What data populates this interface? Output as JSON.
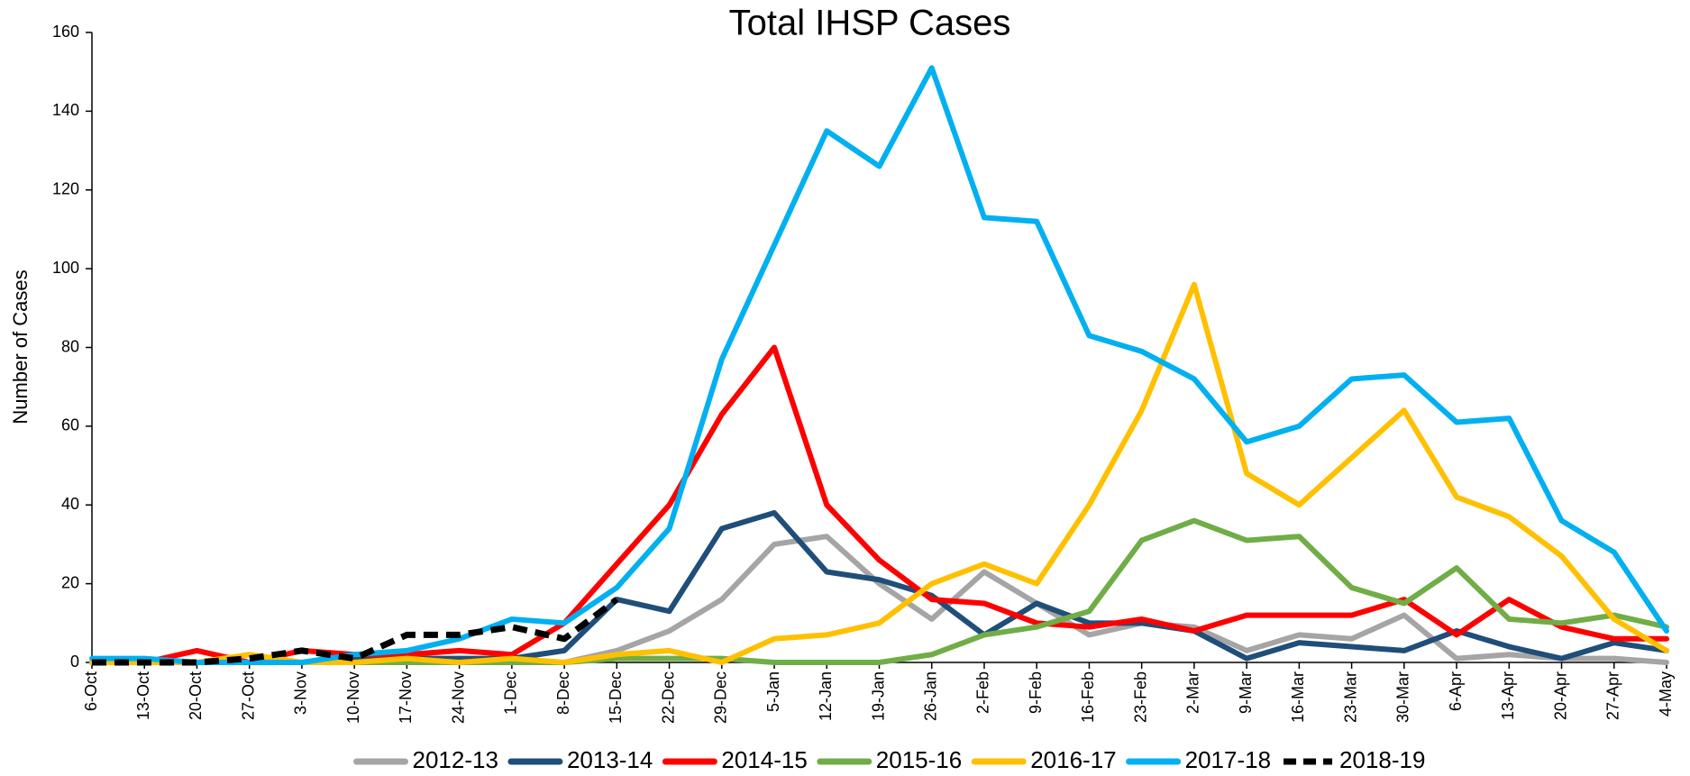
{
  "chart_data": {
    "type": "line",
    "title": "Total IHSP Cases",
    "y_label": "Number of Cases",
    "categories": [
      "6-Oct",
      "13-Oct",
      "20-Oct",
      "27-Oct",
      "3-Nov",
      "10-Nov",
      "17-Nov",
      "24-Nov",
      "1-Dec",
      "8-Dec",
      "15-Dec",
      "22-Dec",
      "29-Dec",
      "5-Jan",
      "12-Jan",
      "19-Jan",
      "26-Jan",
      "2-Feb",
      "9-Feb",
      "16-Feb",
      "23-Feb",
      "2-Mar",
      "9-Mar",
      "16-Mar",
      "23-Mar",
      "30-Mar",
      "6-Apr",
      "13-Apr",
      "20-Apr",
      "27-Apr",
      "4-May"
    ],
    "ylim": [
      0,
      160
    ],
    "yticks": [
      0,
      20,
      40,
      60,
      80,
      100,
      120,
      140,
      160
    ],
    "grid": false,
    "legend": "bottom",
    "series": [
      {
        "name": "2012-13",
        "color": "#a5a5a5",
        "values": [
          0,
          0,
          0,
          0,
          0,
          0,
          0,
          0,
          0,
          0,
          3,
          8,
          16,
          30,
          32,
          20,
          11,
          23,
          15,
          7,
          10,
          9,
          3,
          7,
          6,
          12,
          1,
          2,
          1,
          1,
          0
        ]
      },
      {
        "name": "2013-14",
        "color": "#1f4e79",
        "values": [
          0,
          0,
          0,
          0,
          0,
          1,
          1,
          1,
          1,
          3,
          16,
          13,
          34,
          38,
          23,
          21,
          17,
          7,
          15,
          10,
          10,
          8,
          1,
          5,
          4,
          3,
          8,
          4,
          1,
          5,
          3
        ]
      },
      {
        "name": "2014-15",
        "color": "#ff0000",
        "values": [
          0,
          0,
          3,
          0,
          3,
          2,
          2,
          3,
          2,
          10,
          25,
          40,
          63,
          80,
          40,
          26,
          16,
          15,
          10,
          9,
          11,
          8,
          12,
          12,
          12,
          16,
          7,
          16,
          9,
          6,
          6
        ]
      },
      {
        "name": "2015-16",
        "color": "#70ad47",
        "values": [
          0,
          0,
          0,
          0,
          0,
          0,
          0,
          0,
          0,
          0,
          1,
          1,
          1,
          0,
          0,
          0,
          2,
          7,
          9,
          13,
          31,
          36,
          31,
          32,
          19,
          15,
          24,
          11,
          10,
          12,
          9
        ]
      },
      {
        "name": "2016-17",
        "color": "#ffc000",
        "values": [
          0,
          0,
          0,
          2,
          0,
          0,
          1,
          0,
          1,
          0,
          2,
          3,
          0,
          6,
          7,
          10,
          20,
          25,
          20,
          40,
          64,
          96,
          48,
          40,
          52,
          64,
          42,
          37,
          27,
          11,
          3
        ]
      },
      {
        "name": "2017-18",
        "color": "#00b0f0",
        "values": [
          1,
          1,
          0,
          0,
          0,
          2,
          3,
          6,
          11,
          10,
          19,
          34,
          77,
          106,
          135,
          126,
          151,
          113,
          112,
          83,
          79,
          72,
          56,
          60,
          72,
          73,
          61,
          62,
          36,
          28,
          8
        ]
      },
      {
        "name": "2018-19",
        "color": "#000000",
        "dashed": true,
        "values": [
          0,
          0,
          0,
          1,
          3,
          1,
          7,
          7,
          9,
          6,
          16,
          null,
          null,
          null,
          null,
          null,
          null,
          null,
          null,
          null,
          null,
          null,
          null,
          null,
          null,
          null,
          null,
          null,
          null,
          null,
          null
        ]
      }
    ]
  }
}
